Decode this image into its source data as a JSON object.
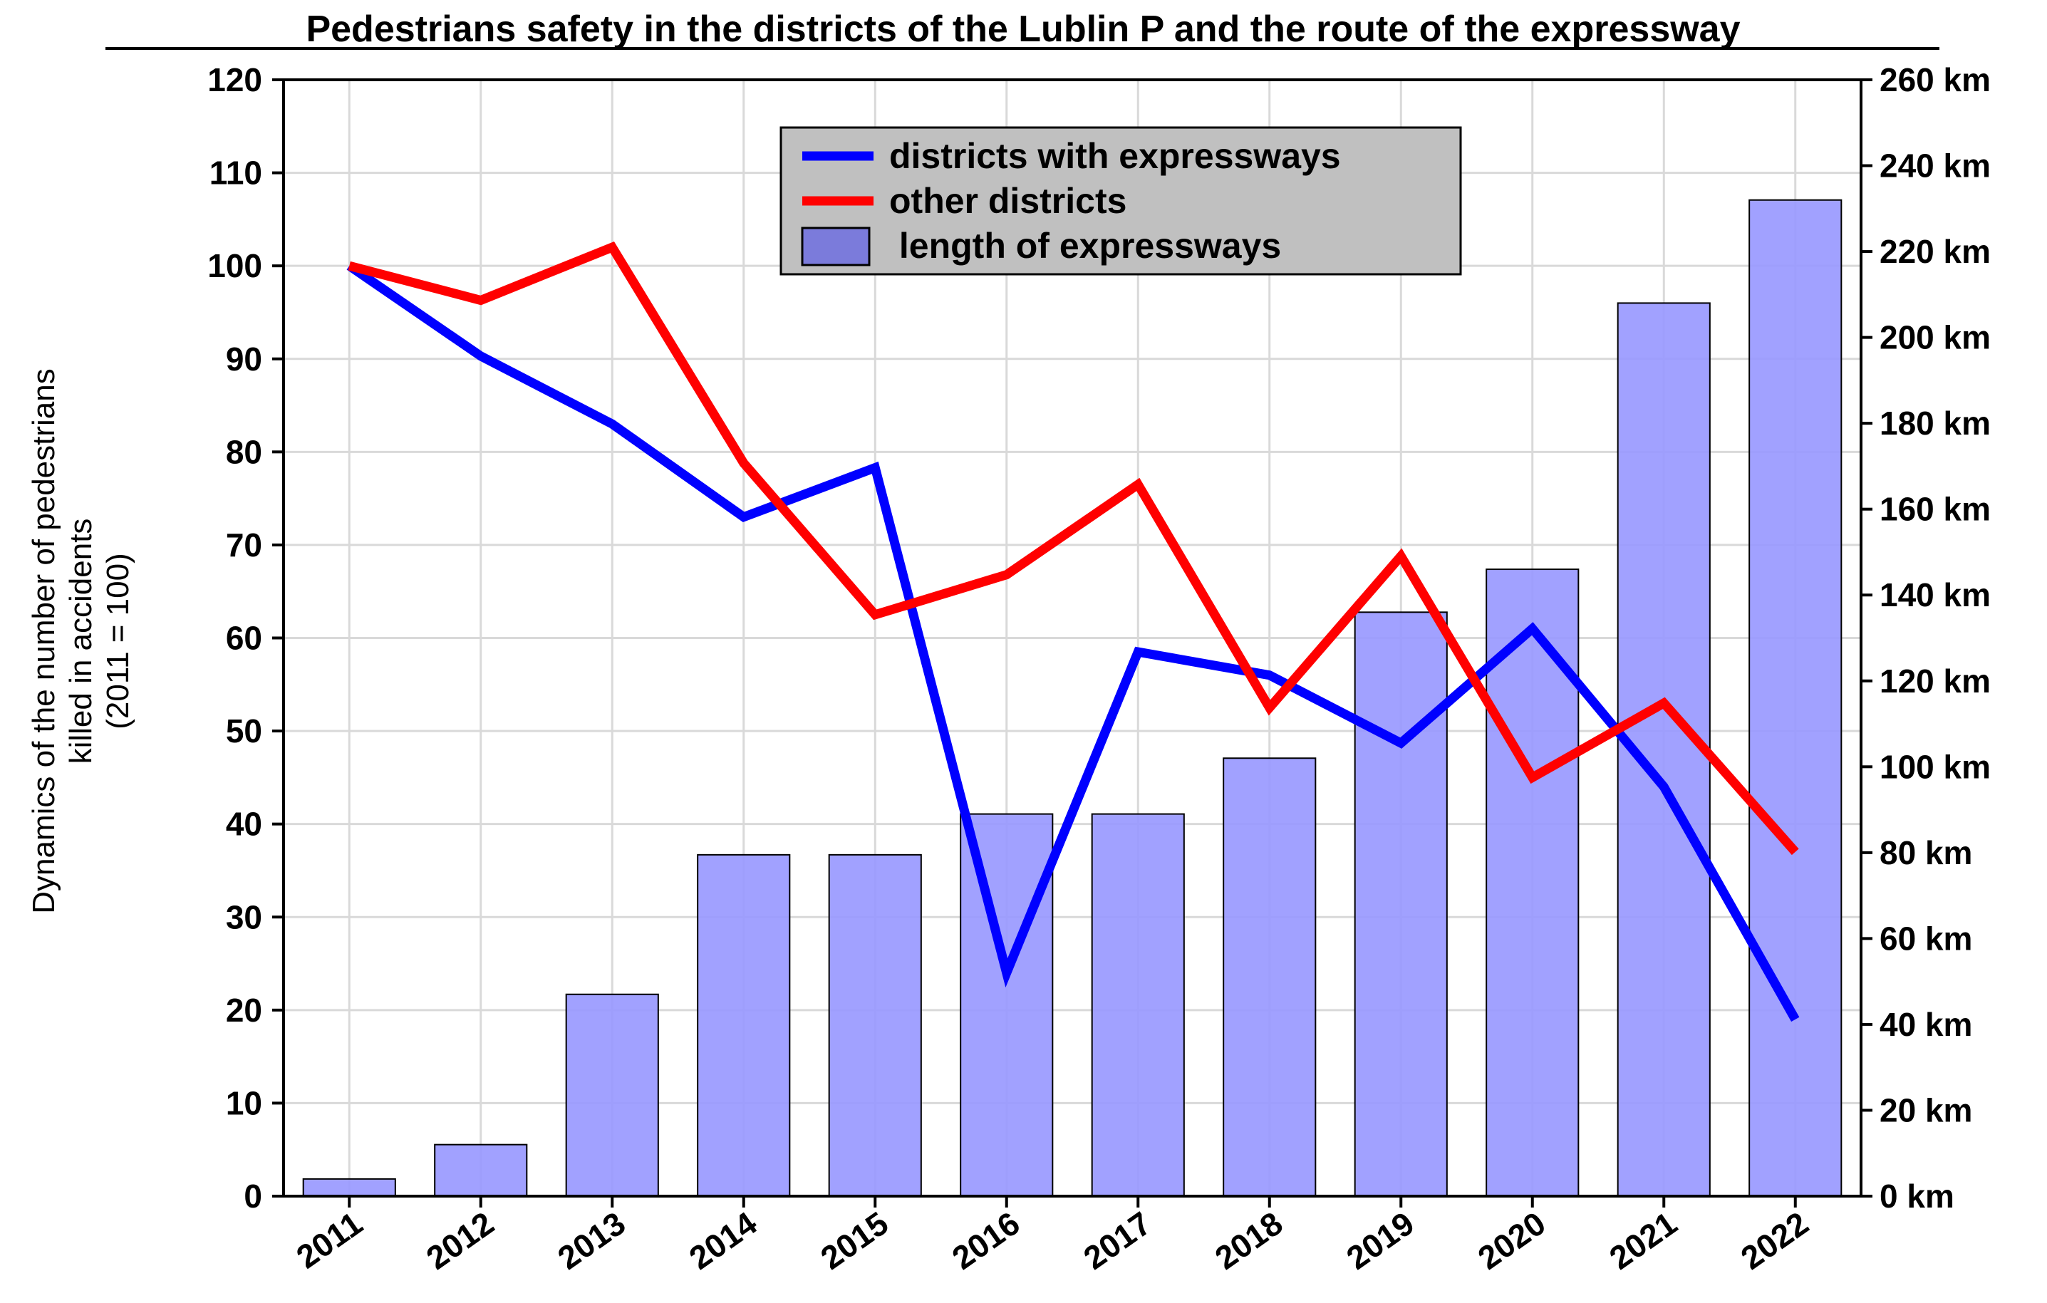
{
  "chart_data": {
    "type": "bar+line",
    "title": "Pedestrians safety in the districts of the Lublin P and the route of the expressway",
    "categories": [
      "2011",
      "2012",
      "2013",
      "2014",
      "2015",
      "2016",
      "2017",
      "2018",
      "2019",
      "2020",
      "2021",
      "2022"
    ],
    "ylabel_lines": [
      "Dynamics of the number of pedestrians",
      "killed in accidents",
      "(2011 = 100)"
    ],
    "ylim": [
      0,
      120
    ],
    "yticks": [
      0,
      10,
      20,
      30,
      40,
      50,
      60,
      70,
      80,
      90,
      100,
      110,
      120
    ],
    "y2lim": [
      0,
      260
    ],
    "y2ticks": [
      0,
      20,
      40,
      60,
      80,
      100,
      120,
      140,
      160,
      180,
      200,
      220,
      240,
      260
    ],
    "y2tick_suffix": " km",
    "grid": true,
    "legend_position": "top-center",
    "series": [
      {
        "name": "districts with expressways",
        "kind": "line",
        "axis": "left",
        "color": "#0000ff",
        "values": [
          100,
          90.3,
          83,
          73,
          78.3,
          24,
          58.5,
          56,
          48.7,
          61,
          44,
          19
        ]
      },
      {
        "name": "other districts",
        "kind": "line",
        "axis": "left",
        "color": "#ff0000",
        "values": [
          100,
          96.3,
          102,
          78.8,
          62.5,
          66.8,
          76.5,
          52.5,
          68.8,
          45,
          53,
          37
        ]
      },
      {
        "name": "length of expressways",
        "kind": "bar",
        "axis": "right",
        "color": "#9999ff",
        "legend_label": " length of expressways",
        "values": [
          4,
          12,
          47,
          79.5,
          79.5,
          89,
          89,
          102,
          136,
          146,
          208,
          232
        ]
      }
    ]
  }
}
